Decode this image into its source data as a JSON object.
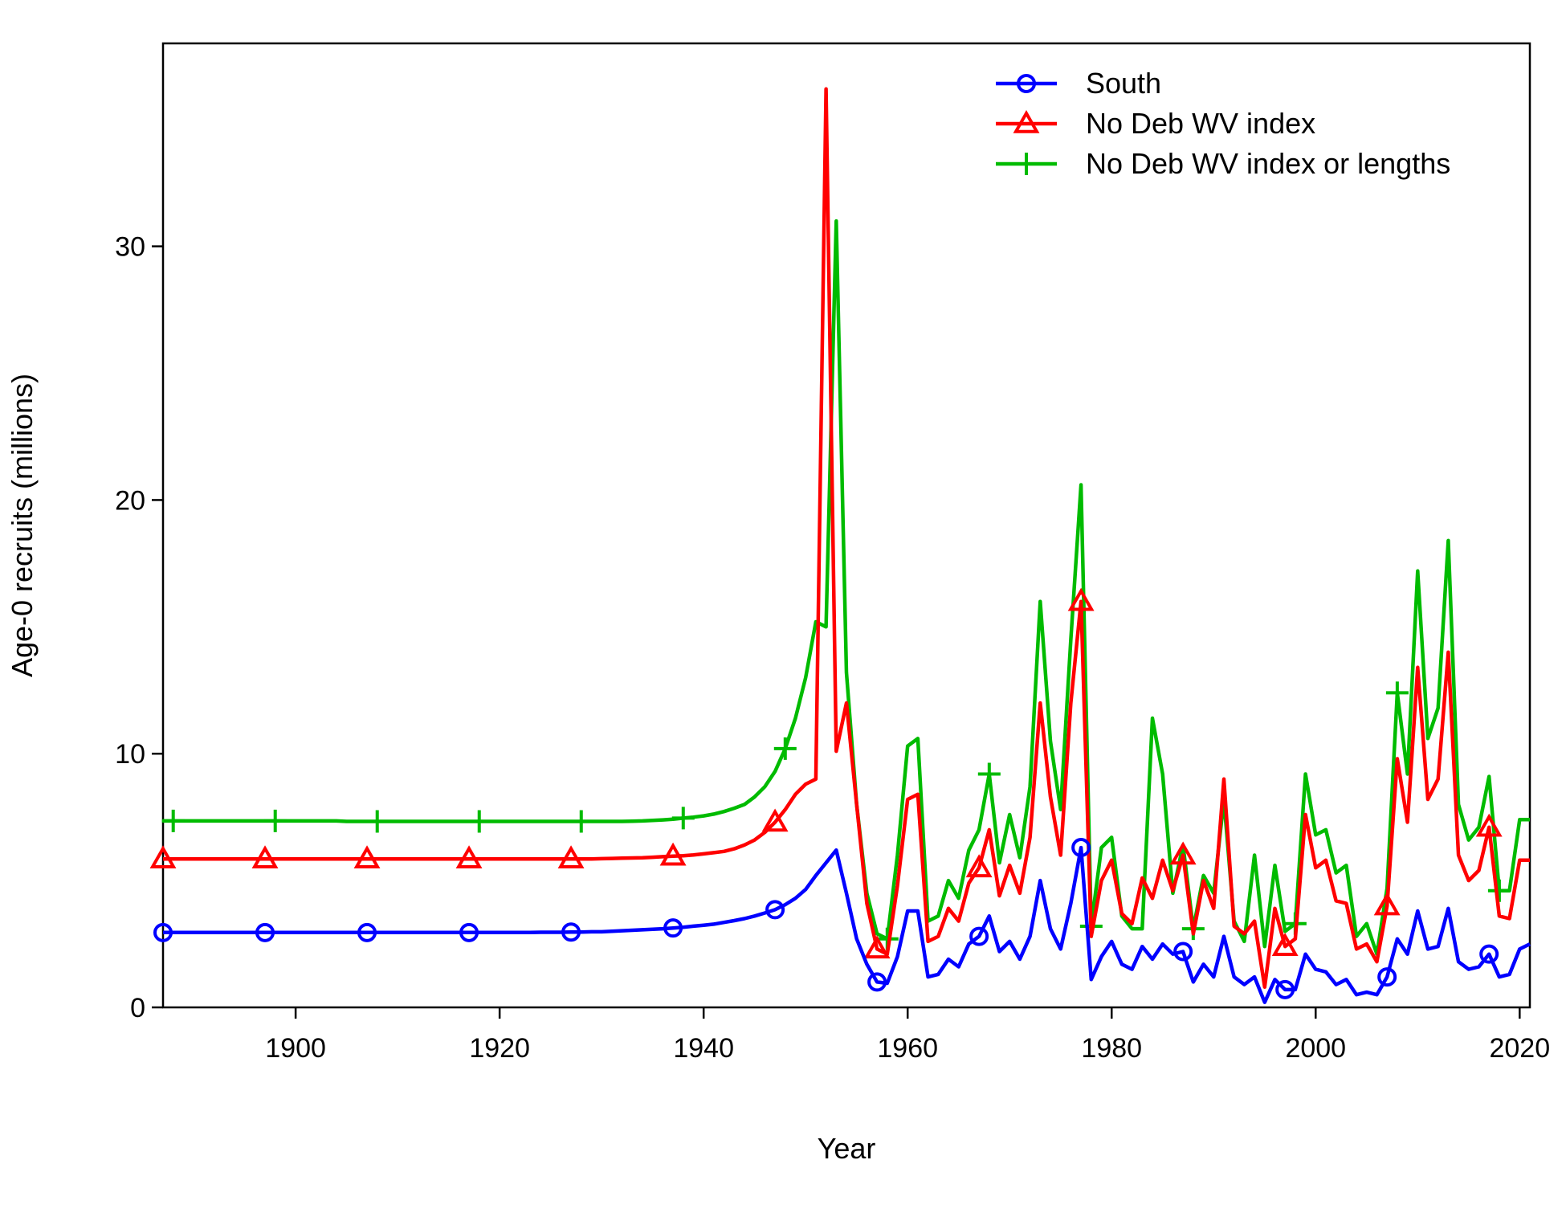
{
  "chart_data": {
    "type": "line",
    "title": "",
    "xlabel": "Year",
    "ylabel": "Age-0 recruits (millions)",
    "xlim": [
      1887,
      2021
    ],
    "ylim": [
      0,
      38
    ],
    "x_ticks": [
      1900,
      1920,
      1940,
      1960,
      1980,
      2000,
      2020
    ],
    "y_ticks": [
      0,
      10,
      20,
      30
    ],
    "legend_position": "top-right",
    "x": [
      1887,
      1888,
      1889,
      1890,
      1891,
      1892,
      1893,
      1894,
      1895,
      1896,
      1897,
      1898,
      1899,
      1900,
      1901,
      1902,
      1903,
      1904,
      1905,
      1906,
      1907,
      1908,
      1909,
      1910,
      1911,
      1912,
      1913,
      1914,
      1915,
      1916,
      1917,
      1918,
      1919,
      1920,
      1921,
      1922,
      1923,
      1924,
      1925,
      1926,
      1927,
      1928,
      1929,
      1930,
      1931,
      1932,
      1933,
      1934,
      1935,
      1936,
      1937,
      1938,
      1939,
      1940,
      1941,
      1942,
      1943,
      1944,
      1945,
      1946,
      1947,
      1948,
      1949,
      1950,
      1951,
      1952,
      1953,
      1954,
      1955,
      1956,
      1957,
      1958,
      1959,
      1960,
      1961,
      1962,
      1963,
      1964,
      1965,
      1966,
      1967,
      1968,
      1969,
      1970,
      1971,
      1972,
      1973,
      1974,
      1975,
      1976,
      1977,
      1978,
      1979,
      1980,
      1981,
      1982,
      1983,
      1984,
      1985,
      1986,
      1987,
      1988,
      1989,
      1990,
      1991,
      1992,
      1993,
      1994,
      1995,
      1996,
      1997,
      1998,
      1999,
      2000,
      2001,
      2002,
      2003,
      2004,
      2005,
      2006,
      2007,
      2008,
      2009,
      2010,
      2011,
      2012,
      2013,
      2014,
      2015,
      2016,
      2017,
      2018,
      2019,
      2020,
      2021
    ],
    "series": [
      {
        "name": "South",
        "color": "#0000ff",
        "marker": "circle",
        "values": [
          2.95,
          2.95,
          2.95,
          2.95,
          2.95,
          2.95,
          2.95,
          2.95,
          2.95,
          2.95,
          2.95,
          2.95,
          2.95,
          2.95,
          2.95,
          2.95,
          2.95,
          2.95,
          2.95,
          2.95,
          2.95,
          2.95,
          2.95,
          2.95,
          2.95,
          2.95,
          2.95,
          2.95,
          2.95,
          2.95,
          2.95,
          2.95,
          2.95,
          2.95,
          2.95,
          2.95,
          2.95,
          2.96,
          2.96,
          2.96,
          2.97,
          2.97,
          2.98,
          2.98,
          3.0,
          3.02,
          3.04,
          3.06,
          3.08,
          3.1,
          3.13,
          3.16,
          3.2,
          3.24,
          3.28,
          3.35,
          3.42,
          3.5,
          3.6,
          3.72,
          3.85,
          4.05,
          4.3,
          4.65,
          5.2,
          5.7,
          6.2,
          4.5,
          2.7,
          1.7,
          1.0,
          0.95,
          2.0,
          3.8,
          3.8,
          1.2,
          1.3,
          1.9,
          1.6,
          2.5,
          2.8,
          3.6,
          2.2,
          2.6,
          1.9,
          2.8,
          5.0,
          3.1,
          2.3,
          4.1,
          6.3,
          1.1,
          2.0,
          2.6,
          1.7,
          1.5,
          2.4,
          1.9,
          2.5,
          2.1,
          2.2,
          1.0,
          1.7,
          1.2,
          2.8,
          1.2,
          0.9,
          1.2,
          0.2,
          1.1,
          0.7,
          0.7,
          2.1,
          1.5,
          1.4,
          0.9,
          1.1,
          0.5,
          0.6,
          0.5,
          1.2,
          2.7,
          2.1,
          3.8,
          2.3,
          2.4,
          3.9,
          1.8,
          1.5,
          1.6,
          2.1,
          1.2,
          1.3,
          2.3,
          2.5
        ]
      },
      {
        "name": "No Deb WV index",
        "color": "#ff0000",
        "marker": "triangle",
        "values": [
          5.85,
          5.85,
          5.85,
          5.85,
          5.85,
          5.85,
          5.85,
          5.85,
          5.85,
          5.85,
          5.85,
          5.85,
          5.85,
          5.85,
          5.85,
          5.85,
          5.85,
          5.85,
          5.85,
          5.85,
          5.85,
          5.85,
          5.85,
          5.85,
          5.85,
          5.85,
          5.85,
          5.85,
          5.85,
          5.85,
          5.85,
          5.85,
          5.85,
          5.85,
          5.85,
          5.85,
          5.85,
          5.85,
          5.85,
          5.85,
          5.85,
          5.85,
          5.85,
          5.86,
          5.87,
          5.88,
          5.89,
          5.9,
          5.92,
          5.94,
          5.96,
          5.98,
          6.01,
          6.05,
          6.1,
          6.15,
          6.25,
          6.4,
          6.6,
          6.9,
          7.3,
          7.8,
          8.4,
          8.8,
          9.0,
          36.2,
          10.1,
          12.0,
          8.0,
          4.1,
          2.3,
          2.1,
          4.8,
          8.2,
          8.4,
          2.6,
          2.8,
          3.9,
          3.4,
          4.9,
          5.5,
          7.0,
          4.4,
          5.6,
          4.5,
          6.7,
          12.0,
          8.3,
          6.0,
          12.0,
          16.0,
          2.8,
          5.0,
          5.8,
          3.7,
          3.3,
          5.1,
          4.3,
          5.8,
          4.6,
          6.0,
          2.9,
          5.0,
          3.9,
          9.0,
          3.2,
          2.9,
          3.4,
          0.8,
          3.9,
          2.4,
          2.7,
          7.6,
          5.5,
          5.8,
          4.2,
          4.1,
          2.3,
          2.5,
          1.8,
          4.0,
          9.8,
          7.3,
          13.4,
          8.2,
          9.0,
          14.0,
          6.0,
          5.0,
          5.4,
          7.1,
          3.6,
          3.5,
          5.8,
          5.8
        ]
      },
      {
        "name": "No Deb WV index or lengths",
        "color": "#00bb00",
        "marker": "plus",
        "values": [
          7.35,
          7.35,
          7.35,
          7.35,
          7.35,
          7.35,
          7.35,
          7.35,
          7.35,
          7.35,
          7.35,
          7.35,
          7.35,
          7.35,
          7.35,
          7.35,
          7.35,
          7.35,
          7.33,
          7.33,
          7.33,
          7.33,
          7.33,
          7.33,
          7.33,
          7.33,
          7.33,
          7.33,
          7.33,
          7.33,
          7.33,
          7.33,
          7.33,
          7.33,
          7.33,
          7.33,
          7.33,
          7.33,
          7.33,
          7.33,
          7.33,
          7.33,
          7.33,
          7.33,
          7.33,
          7.33,
          7.34,
          7.35,
          7.37,
          7.39,
          7.42,
          7.46,
          7.5,
          7.55,
          7.62,
          7.72,
          7.85,
          8.0,
          8.3,
          8.7,
          9.3,
          10.2,
          11.4,
          13.0,
          15.2,
          15.0,
          31.0,
          13.2,
          8.0,
          4.5,
          2.9,
          2.7,
          6.0,
          10.3,
          10.6,
          3.4,
          3.6,
          5.0,
          4.3,
          6.2,
          7.0,
          9.2,
          5.7,
          7.6,
          5.9,
          8.7,
          16.0,
          10.5,
          7.8,
          14.5,
          20.6,
          3.2,
          6.3,
          6.7,
          3.6,
          3.1,
          3.1,
          11.4,
          9.2,
          4.5,
          6.4,
          3.1,
          5.2,
          4.5,
          8.2,
          3.4,
          2.6,
          6.0,
          2.4,
          5.6,
          3.0,
          3.3,
          9.2,
          6.8,
          7.0,
          5.3,
          5.6,
          2.8,
          3.3,
          2.1,
          4.7,
          12.4,
          9.2,
          17.2,
          10.6,
          11.8,
          18.4,
          8.0,
          6.6,
          7.1,
          9.1,
          4.6,
          4.6,
          7.4,
          7.4
        ]
      }
    ]
  }
}
